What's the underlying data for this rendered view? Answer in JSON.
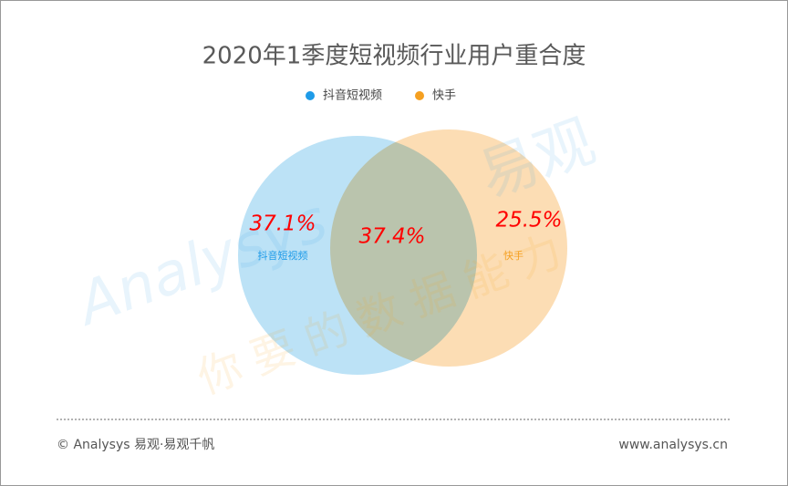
{
  "chart_data": {
    "type": "venn",
    "title": "2020年1季度短视频行业用户重合度",
    "series": [
      {
        "name": "抖音短视频",
        "color": "#1e9be8",
        "fill": "#9fd5f2",
        "values": [
          37.1
        ],
        "value_labels": [
          "37.1%"
        ]
      },
      {
        "name": "快手",
        "color": "#f5a021",
        "fill": "#fbd29b",
        "values": [
          25.5
        ],
        "value_labels": [
          "25.5%"
        ]
      }
    ],
    "overlap": {
      "value": 37.4,
      "value_label": "37.4%"
    },
    "label_color": "#ff0000",
    "watermark": [
      "Analysys",
      "易观",
      "你要的数据能力"
    ],
    "footer": {
      "left": "© Analysys 易观·易观千帆",
      "right": "www.analysys.cn"
    }
  }
}
